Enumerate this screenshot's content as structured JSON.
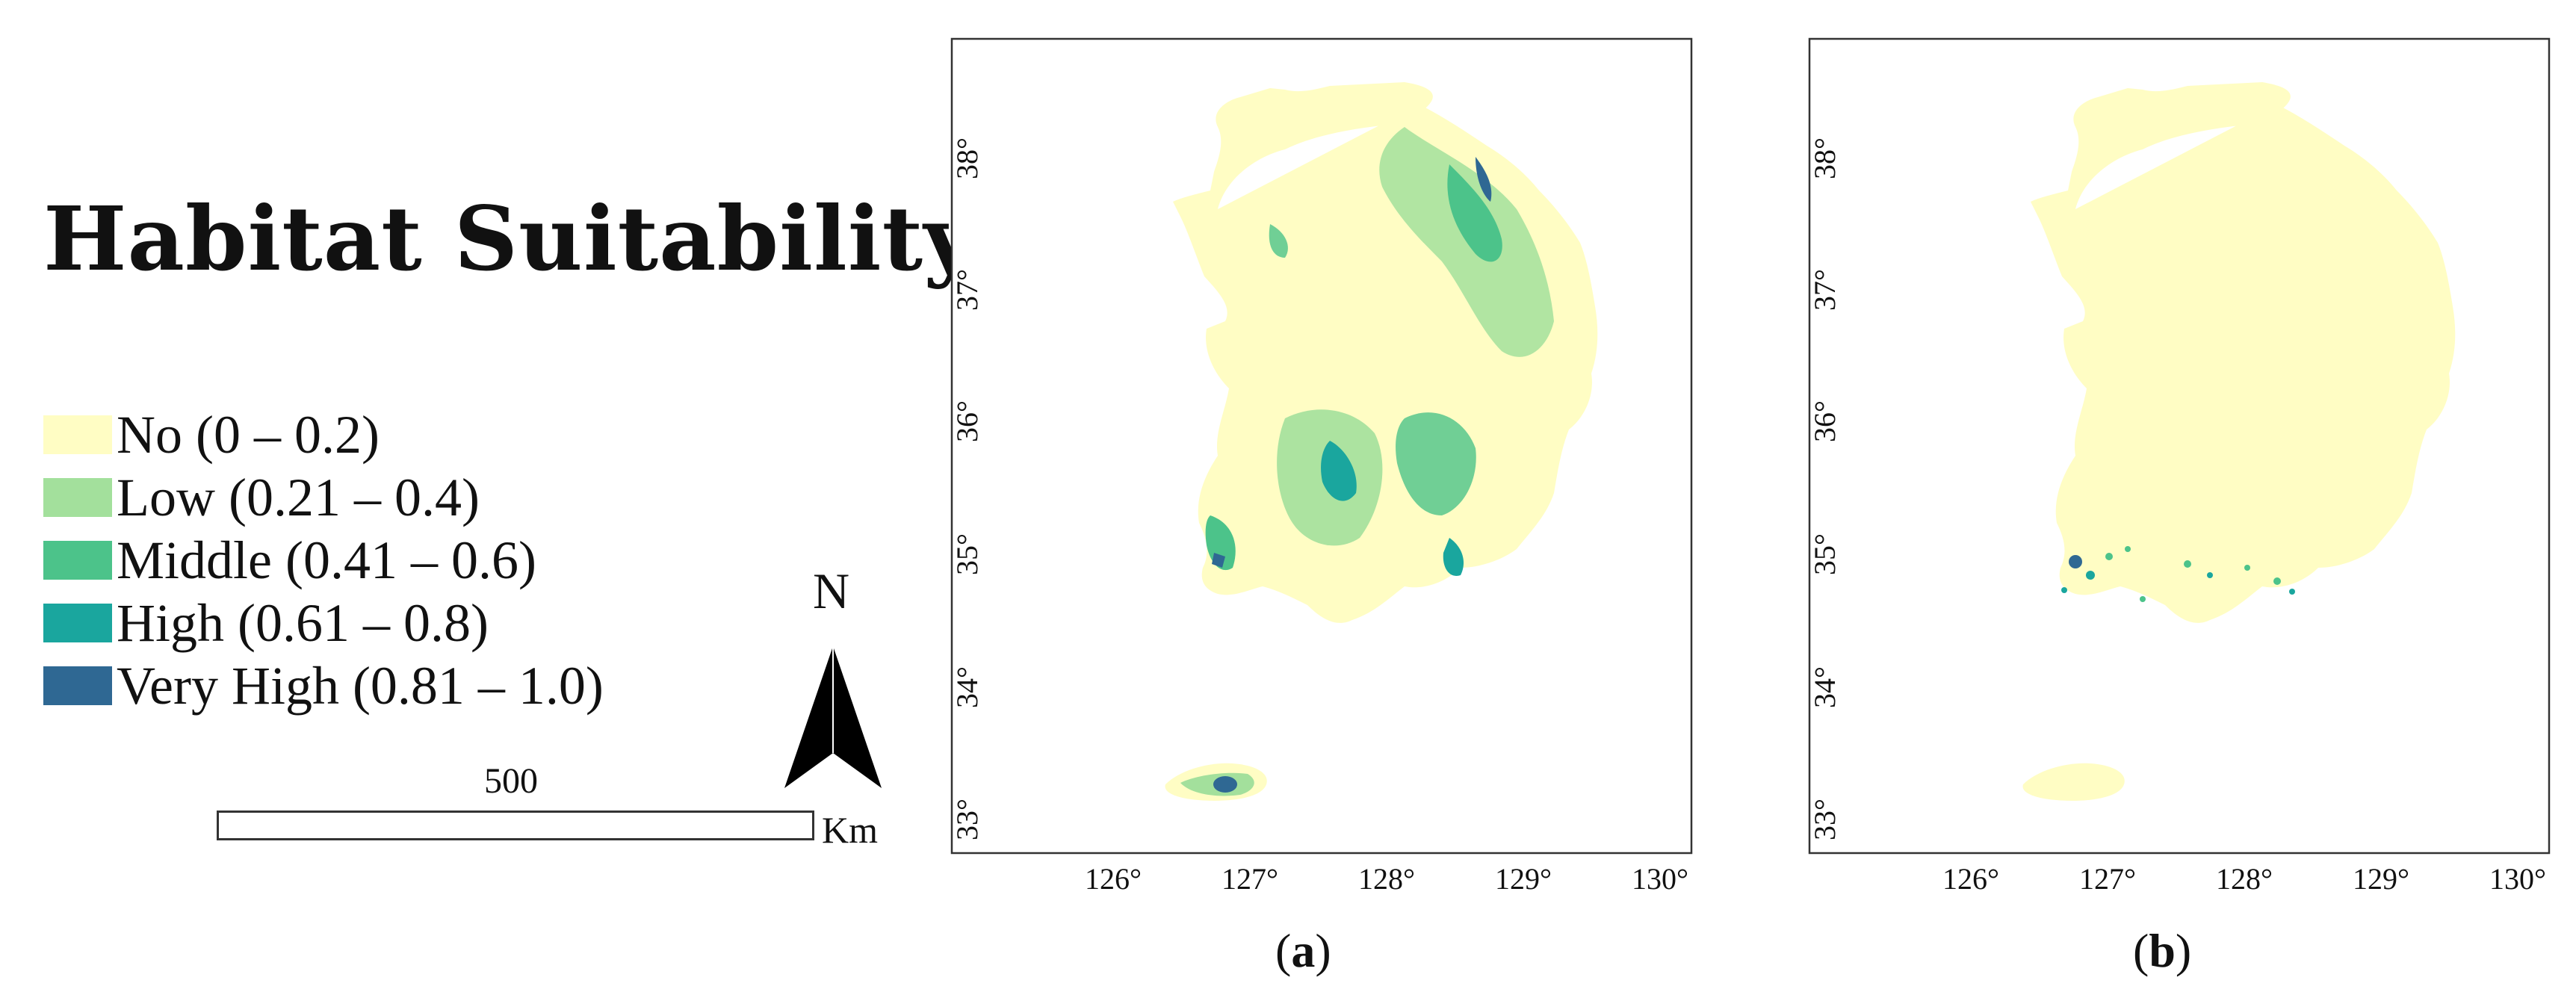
{
  "legend": {
    "title": "Habitat Suitability",
    "classes": [
      {
        "label": "No (0 – 0.2)",
        "color": "#fffdc4"
      },
      {
        "label": "Low (0.21 – 0.4)",
        "color": "#a3e09c"
      },
      {
        "label": "Middle (0.41 – 0.6)",
        "color": "#4cc38a"
      },
      {
        "label": "High (0.61 – 0.8)",
        "color": "#1aa69e"
      },
      {
        "label": "Very High (0.81 – 1.0)",
        "color": "#2f6893"
      }
    ]
  },
  "north_arrow": {
    "label": "N"
  },
  "scale_bar": {
    "value": "500",
    "unit": "Km"
  },
  "maps": [
    {
      "id": "a",
      "caption_open": "(",
      "caption_letter": "a",
      "caption_close": ")",
      "lat_ticks": [
        "33°",
        "34°",
        "35°",
        "36°",
        "37°",
        "38°"
      ],
      "lon_ticks": [
        "126°",
        "127°",
        "128°",
        "129°",
        "130°"
      ]
    },
    {
      "id": "b",
      "caption_open": "(",
      "caption_letter": "b",
      "caption_close": ")",
      "lat_ticks": [
        "33°",
        "34°",
        "35°",
        "36°",
        "37°",
        "38°"
      ],
      "lon_ticks": [
        "126°",
        "127°",
        "128°",
        "129°",
        "130°"
      ]
    }
  ]
}
